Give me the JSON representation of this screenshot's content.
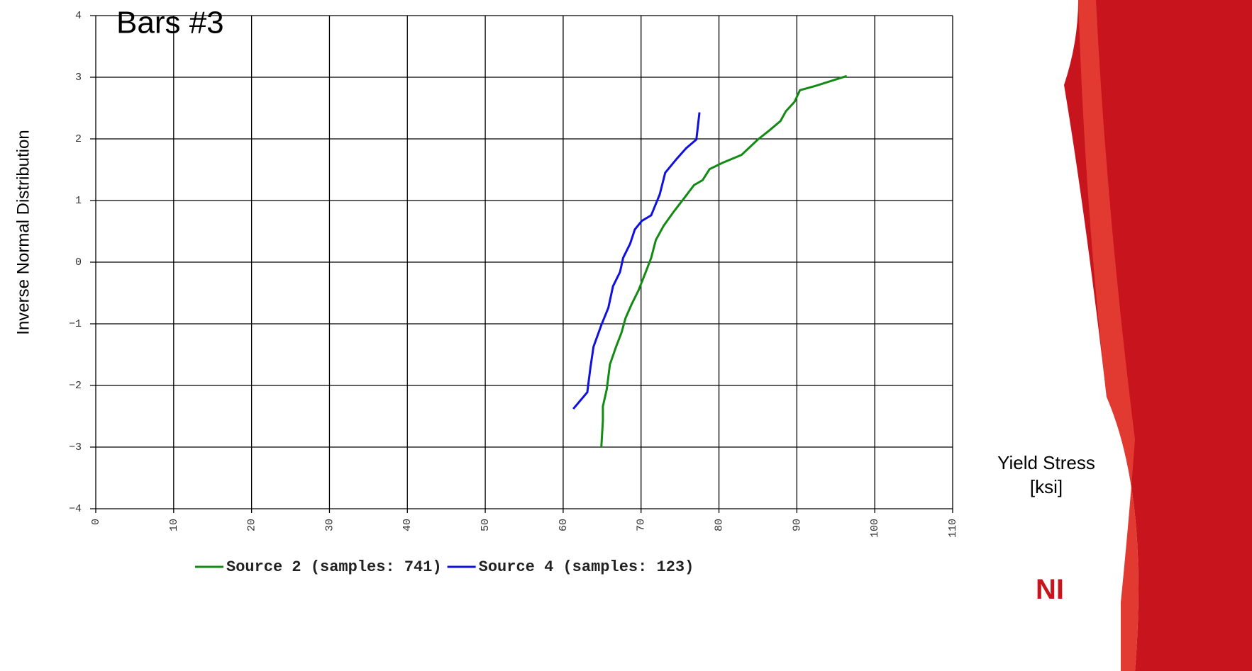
{
  "chart_data": {
    "type": "line",
    "title": "Bars #3",
    "y_label": "Inverse Normal Distribution",
    "x_label": "Yield Stress [ksi]",
    "xlim": [
      0,
      110
    ],
    "xticks": [
      0,
      10,
      20,
      30,
      40,
      50,
      60,
      70,
      80,
      90,
      100,
      110
    ],
    "ylim": [
      -4,
      4
    ],
    "yticks": [
      {
        "value": -4,
        "label": "−4"
      },
      {
        "value": -3,
        "label": "−3"
      },
      {
        "value": -2,
        "label": "−2"
      },
      {
        "value": -1,
        "label": "−1"
      },
      0,
      1,
      2,
      3,
      4
    ],
    "grid": true,
    "legend": "bottom",
    "series": [
      {
        "name": "Source 2 (samples: 741)",
        "color": "#138a13",
        "x": [
          64.9,
          65.1,
          65.1,
          65.6,
          66.0,
          66.8,
          67.5,
          68.0,
          68.8,
          69.7,
          70.6,
          71.3,
          71.9,
          72.9,
          74.2,
          75.6,
          76.8,
          77.9,
          78.8,
          80.6,
          82.9,
          85.0,
          86.5,
          87.9,
          88.6,
          89.7,
          90.4,
          92.4,
          96.4
        ],
        "values": [
          -3.0,
          -2.57,
          -2.34,
          -2.06,
          -1.66,
          -1.37,
          -1.14,
          -0.91,
          -0.68,
          -0.45,
          -0.16,
          0.07,
          0.36,
          0.59,
          0.82,
          1.05,
          1.25,
          1.33,
          1.51,
          1.62,
          1.74,
          1.99,
          2.14,
          2.29,
          2.45,
          2.6,
          2.79,
          2.86,
          3.02
        ]
      },
      {
        "name": "Source 4 (samples: 123)",
        "color": "#1010e0",
        "x": [
          61.3,
          63.1,
          63.5,
          63.9,
          64.9,
          65.8,
          66.4,
          67.3,
          67.7,
          68.6,
          69.2,
          70.1,
          71.3,
          72.4,
          73.1,
          74.6,
          75.8,
          77.1,
          77.5
        ],
        "values": [
          -2.38,
          -2.11,
          -1.71,
          -1.37,
          -1.02,
          -0.74,
          -0.39,
          -0.16,
          0.07,
          0.3,
          0.53,
          0.67,
          0.76,
          1.1,
          1.45,
          1.68,
          1.85,
          1.99,
          2.43
        ]
      }
    ]
  }
}
